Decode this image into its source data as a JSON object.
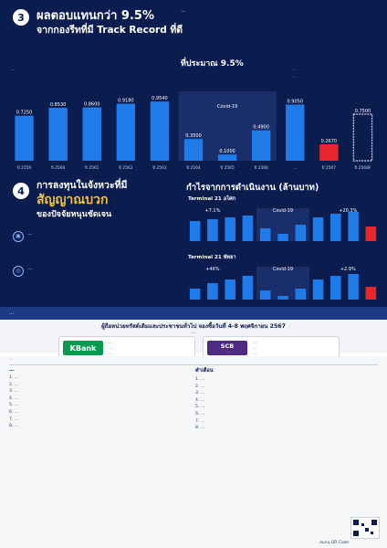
{
  "section3": {
    "number": "3",
    "title_line1": "ผลตอบแทนกว่า 9.5%",
    "title_line2": "จากกองรีทที่มี Track Record ที่ดี",
    "desc": "…",
    "desc_highlight": "ที่ประมาณ 9.5%",
    "unit_label": "…",
    "legend_note_1": "…",
    "legend_note_2": "…"
  },
  "chart_data": {
    "type": "bar",
    "categories": [
      "ปี 2559",
      "ปี 2560",
      "ปี 2561",
      "ปี 2562",
      "ปี 2563",
      "ปี 2564",
      "ปี 2565",
      "ปี 2566",
      "…",
      "ปี 2567",
      "ปี 2568F"
    ],
    "values": [
      0.725,
      0.853,
      0.86,
      0.918,
      0.954,
      0.35,
      0.1,
      0.49,
      0.905,
      0.267,
      0.75
    ],
    "annotation": "Covid-19",
    "highlight_color": "#e8262b",
    "bar_color": "#1f7be8"
  },
  "section4": {
    "number": "4",
    "title_line1": "การลงทุนในจังหวะที่มี",
    "title_line2": "สัญญาณบวก",
    "title_line3": "ของปัจจัยหนุนชัดเจน",
    "bullet1": "…",
    "bullet2": "…",
    "right_title": "กำไรจากการดำเนินงาน (ล้านบาท)",
    "mini1_title": "Terminal 21 อโศก",
    "mini2_title": "Terminal 21 พัทยา",
    "mini1_labels": [
      "+7.1%",
      "Covid-19",
      "+20.3%"
    ],
    "mini2_labels": [
      "+46%",
      "Covid-19",
      "+2.9%"
    ]
  },
  "strip_text": "…",
  "subscription": {
    "title": "ผู้ถือหน่วยทรัสต์เดิมและประชาชนทั่วไป จองซื้อวันที่ 4-8 พฤศจิกายน 2567",
    "subtitle": "…",
    "kbank_name": "KBank",
    "kbank_lines": [
      "…",
      "…",
      "…"
    ],
    "scb_name": "SCB",
    "scb_sub": "…",
    "scb_lines": [
      "…",
      "…",
      "…"
    ],
    "note": "…"
  },
  "footer": {
    "left_title": "…",
    "left_items": [
      "…",
      "…",
      "…",
      "…",
      "…",
      "…",
      "…",
      "…"
    ],
    "right_title": "คำเตือน",
    "right_items": [
      "…",
      "…",
      "…",
      "…",
      "…",
      "…",
      "…",
      "…"
    ],
    "qr_caption": "สแกน QR Code"
  }
}
